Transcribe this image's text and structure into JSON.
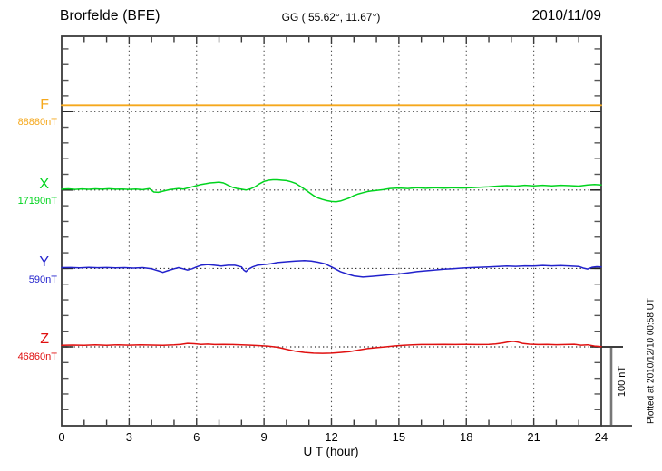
{
  "header": {
    "station": "Brorfelde (BFE)",
    "coords": "GG ( 55.62°,  11.67°)",
    "date": "2010/11/09"
  },
  "chart_data": {
    "type": "line",
    "title": "Brorfelde (BFE) magnetogram 2010/11/09",
    "xlabel": "U T (hour)",
    "x_range": [
      0,
      24
    ],
    "x_ticks": [
      0,
      3,
      6,
      9,
      12,
      15,
      18,
      21,
      24
    ],
    "x_minor_tick_hours": 1,
    "grid_hours": [
      3,
      6,
      9,
      12,
      15,
      18,
      21
    ],
    "y_minor_tick_nT": 20,
    "scale_bar": {
      "label": "100 nT",
      "nT": 100
    },
    "footnote": "Plotted at 2010/12/10 00:58 UT",
    "series": [
      {
        "id": "F",
        "label": "F",
        "baseline_label": "88880nT",
        "baseline_nT": 88880,
        "color": "#F5A81C",
        "points": [
          [
            0,
            8
          ],
          [
            24,
            8
          ]
        ]
      },
      {
        "id": "X",
        "label": "X",
        "baseline_label": "17190nT",
        "baseline_nT": 17190,
        "color": "#00D41E",
        "points": [
          [
            0,
            1
          ],
          [
            0.3,
            1.5
          ],
          [
            0.6,
            0.8
          ],
          [
            0.9,
            1.4
          ],
          [
            1.2,
            0.9
          ],
          [
            1.5,
            1.5
          ],
          [
            1.8,
            1.0
          ],
          [
            2.1,
            1.6
          ],
          [
            2.4,
            1.0
          ],
          [
            2.7,
            1.3
          ],
          [
            3.0,
            0.8
          ],
          [
            3.3,
            1.2
          ],
          [
            3.6,
            0.5
          ],
          [
            3.9,
            1.8
          ],
          [
            4.1,
            -2.5
          ],
          [
            4.3,
            -3
          ],
          [
            4.5,
            -1.5
          ],
          [
            4.8,
            0.5
          ],
          [
            5.0,
            1.2
          ],
          [
            5.2,
            2
          ],
          [
            5.4,
            1.2
          ],
          [
            5.6,
            2.5
          ],
          [
            5.8,
            4
          ],
          [
            6.0,
            5.5
          ],
          [
            6.2,
            7
          ],
          [
            6.4,
            8
          ],
          [
            6.6,
            9
          ],
          [
            6.8,
            9.5
          ],
          [
            7.0,
            10
          ],
          [
            7.2,
            9
          ],
          [
            7.4,
            6
          ],
          [
            7.6,
            3.5
          ],
          [
            7.8,
            2
          ],
          [
            8.0,
            1
          ],
          [
            8.2,
            0
          ],
          [
            8.4,
            1.5
          ],
          [
            8.6,
            4
          ],
          [
            8.8,
            8
          ],
          [
            9.0,
            11
          ],
          [
            9.2,
            12.5
          ],
          [
            9.4,
            13
          ],
          [
            9.6,
            13
          ],
          [
            9.8,
            12.5
          ],
          [
            10.0,
            12
          ],
          [
            10.2,
            10.5
          ],
          [
            10.4,
            8.5
          ],
          [
            10.6,
            5
          ],
          [
            10.8,
            1
          ],
          [
            11.0,
            -3
          ],
          [
            11.2,
            -7
          ],
          [
            11.4,
            -10
          ],
          [
            11.6,
            -12
          ],
          [
            11.8,
            -13.5
          ],
          [
            12.0,
            -14.5
          ],
          [
            12.2,
            -15
          ],
          [
            12.4,
            -14
          ],
          [
            12.6,
            -12
          ],
          [
            12.8,
            -10
          ],
          [
            13.0,
            -7
          ],
          [
            13.2,
            -5
          ],
          [
            13.4,
            -3.5
          ],
          [
            13.6,
            -2
          ],
          [
            13.8,
            -1
          ],
          [
            14.0,
            -0.5
          ],
          [
            14.3,
            0.5
          ],
          [
            14.6,
            2
          ],
          [
            15.0,
            2.5
          ],
          [
            15.4,
            2
          ],
          [
            15.8,
            3
          ],
          [
            16.2,
            2.2
          ],
          [
            16.6,
            3
          ],
          [
            17.0,
            2.3
          ],
          [
            17.4,
            3
          ],
          [
            17.8,
            2.5
          ],
          [
            18.2,
            3
          ],
          [
            18.6,
            3.5
          ],
          [
            19.0,
            4
          ],
          [
            19.4,
            5
          ],
          [
            19.8,
            5.5
          ],
          [
            20.2,
            5
          ],
          [
            20.6,
            6
          ],
          [
            21.0,
            5.2
          ],
          [
            21.4,
            6
          ],
          [
            21.8,
            5.3
          ],
          [
            22.2,
            6
          ],
          [
            22.6,
            5.5
          ],
          [
            23.0,
            5
          ],
          [
            23.4,
            6.5
          ],
          [
            23.7,
            7
          ],
          [
            24,
            6.5
          ]
        ]
      },
      {
        "id": "Y",
        "label": "Y",
        "baseline_label": "590nT",
        "baseline_nT": 590,
        "color": "#2222CC",
        "points": [
          [
            0,
            1
          ],
          [
            0.4,
            1.2
          ],
          [
            0.8,
            0.8
          ],
          [
            1.2,
            1.3
          ],
          [
            1.6,
            0.9
          ],
          [
            2.0,
            1.2
          ],
          [
            2.4,
            0.8
          ],
          [
            2.8,
            1
          ],
          [
            3.2,
            0.5
          ],
          [
            3.6,
            1
          ],
          [
            4.0,
            -0.5
          ],
          [
            4.3,
            -3
          ],
          [
            4.5,
            -5
          ],
          [
            4.7,
            -3
          ],
          [
            5.0,
            -0.5
          ],
          [
            5.2,
            1
          ],
          [
            5.4,
            -0.5
          ],
          [
            5.6,
            -2
          ],
          [
            5.8,
            -0.5
          ],
          [
            6.0,
            2
          ],
          [
            6.2,
            4
          ],
          [
            6.5,
            5
          ],
          [
            6.8,
            4
          ],
          [
            7.1,
            3
          ],
          [
            7.4,
            4
          ],
          [
            7.7,
            4
          ],
          [
            8.0,
            2
          ],
          [
            8.1,
            -2
          ],
          [
            8.2,
            -4
          ],
          [
            8.3,
            -1
          ],
          [
            8.5,
            2
          ],
          [
            8.7,
            4
          ],
          [
            9.0,
            5
          ],
          [
            9.3,
            6
          ],
          [
            9.6,
            7.5
          ],
          [
            10.0,
            8.5
          ],
          [
            10.4,
            9.5
          ],
          [
            10.8,
            10
          ],
          [
            11.1,
            9.5
          ],
          [
            11.4,
            8
          ],
          [
            11.7,
            6
          ],
          [
            12.0,
            2
          ],
          [
            12.2,
            -1
          ],
          [
            12.4,
            -4
          ],
          [
            12.7,
            -7
          ],
          [
            13.0,
            -9.5
          ],
          [
            13.4,
            -11
          ],
          [
            13.8,
            -10
          ],
          [
            14.2,
            -9
          ],
          [
            14.6,
            -8
          ],
          [
            15.0,
            -7
          ],
          [
            15.4,
            -5.5
          ],
          [
            15.8,
            -4
          ],
          [
            16.2,
            -3
          ],
          [
            16.6,
            -2
          ],
          [
            17.0,
            -1
          ],
          [
            17.4,
            -0.3
          ],
          [
            17.8,
            0.5
          ],
          [
            18.2,
            1
          ],
          [
            18.6,
            1.5
          ],
          [
            19.0,
            2
          ],
          [
            19.4,
            2.5
          ],
          [
            19.8,
            3
          ],
          [
            20.2,
            2.6
          ],
          [
            20.6,
            3.2
          ],
          [
            21.0,
            3
          ],
          [
            21.4,
            3.8
          ],
          [
            21.8,
            3.2
          ],
          [
            22.2,
            3.6
          ],
          [
            22.6,
            3
          ],
          [
            23.0,
            2.5
          ],
          [
            23.2,
            0.5
          ],
          [
            23.4,
            -0.8
          ],
          [
            23.6,
            1.5
          ],
          [
            23.8,
            2.2
          ],
          [
            24,
            1.8
          ]
        ]
      },
      {
        "id": "Z",
        "label": "Z",
        "baseline_label": "46860nT",
        "baseline_nT": 46860,
        "color": "#E01010",
        "points": [
          [
            0,
            2
          ],
          [
            0.5,
            2.3
          ],
          [
            1.0,
            2
          ],
          [
            1.5,
            2.5
          ],
          [
            2.0,
            2.1
          ],
          [
            2.5,
            2.6
          ],
          [
            3.0,
            2.2
          ],
          [
            3.5,
            2.6
          ],
          [
            4.0,
            2.3
          ],
          [
            4.5,
            2.1
          ],
          [
            5.0,
            2.6
          ],
          [
            5.3,
            3.2
          ],
          [
            5.6,
            4.5
          ],
          [
            5.9,
            4
          ],
          [
            6.2,
            3.2
          ],
          [
            6.5,
            3.6
          ],
          [
            6.8,
            3
          ],
          [
            7.2,
            3.2
          ],
          [
            7.6,
            3
          ],
          [
            8.0,
            2.6
          ],
          [
            8.4,
            2.2
          ],
          [
            8.8,
            1.6
          ],
          [
            9.2,
            0.8
          ],
          [
            9.6,
            -0.5
          ],
          [
            10.0,
            -3
          ],
          [
            10.4,
            -5.5
          ],
          [
            10.8,
            -7
          ],
          [
            11.2,
            -8
          ],
          [
            11.6,
            -8.2
          ],
          [
            12.0,
            -8
          ],
          [
            12.4,
            -7
          ],
          [
            12.8,
            -6
          ],
          [
            13.2,
            -4
          ],
          [
            13.6,
            -2.2
          ],
          [
            14.0,
            -1
          ],
          [
            14.4,
            0
          ],
          [
            14.8,
            1.2
          ],
          [
            15.2,
            2
          ],
          [
            15.6,
            2.6
          ],
          [
            16.0,
            3
          ],
          [
            16.5,
            3
          ],
          [
            17.0,
            3.2
          ],
          [
            17.5,
            3
          ],
          [
            18.0,
            3.2
          ],
          [
            18.5,
            3
          ],
          [
            19.0,
            3.2
          ],
          [
            19.3,
            3.8
          ],
          [
            19.6,
            5
          ],
          [
            19.9,
            6.5
          ],
          [
            20.1,
            7
          ],
          [
            20.3,
            6
          ],
          [
            20.5,
            4.5
          ],
          [
            20.8,
            3.5
          ],
          [
            21.2,
            3
          ],
          [
            21.6,
            3.2
          ],
          [
            22.0,
            2.8
          ],
          [
            22.4,
            3
          ],
          [
            22.8,
            3.4
          ],
          [
            23.1,
            2.2
          ],
          [
            23.4,
            2.6
          ],
          [
            23.7,
            1
          ],
          [
            24,
            0.2
          ]
        ]
      }
    ]
  },
  "colors": {
    "axis": "#3a3a3a",
    "grid": "#4a4a4a",
    "tick": "#555555",
    "baseline_dots": "#2e2e2e",
    "scalebar": "#777777",
    "background": "#ffffff"
  }
}
